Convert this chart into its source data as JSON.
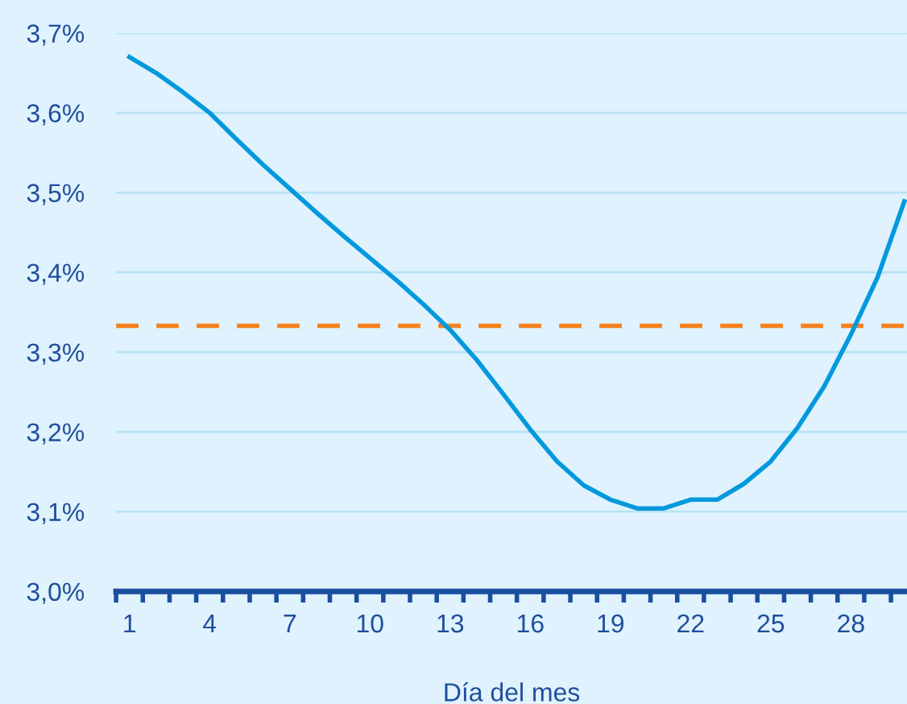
{
  "chart_data": {
    "type": "line",
    "xlabel": "Día del mes",
    "x": [
      1,
      2,
      3,
      4,
      5,
      6,
      7,
      8,
      9,
      10,
      11,
      12,
      13,
      14,
      15,
      16,
      17,
      18,
      19,
      20,
      21,
      22,
      23,
      24,
      25,
      26,
      27,
      28,
      29,
      30
    ],
    "series": [
      {
        "color": "#0099dd",
        "values": [
          3.67,
          3.65,
          3.626,
          3.6,
          3.567,
          3.535,
          3.505,
          3.475,
          3.446,
          3.418,
          3.39,
          3.36,
          3.328,
          3.29,
          3.247,
          3.203,
          3.163,
          3.133,
          3.115,
          3.104,
          3.104,
          3.115,
          3.115,
          3.135,
          3.163,
          3.205,
          3.257,
          3.322,
          3.394,
          3.489
        ]
      }
    ],
    "ref_lines": [
      {
        "axis": "y",
        "value": 3.333,
        "color": "#f5821f",
        "line_style": "dashed"
      }
    ],
    "xlim": [
      0.5,
      30.1
    ],
    "xticks": [
      1,
      4,
      7,
      10,
      13,
      16,
      19,
      22,
      25,
      28,
      {
        "value": 0.5,
        "label": null
      },
      {
        "value": 1.5,
        "label": null
      },
      {
        "value": 2.5,
        "label": null
      },
      {
        "value": 3.5,
        "label": null
      },
      {
        "value": 4.5,
        "label": null
      },
      {
        "value": 5.5,
        "label": null
      },
      {
        "value": 6.5,
        "label": null
      },
      {
        "value": 7.5,
        "label": null
      },
      {
        "value": 8.5,
        "label": null
      },
      {
        "value": 9.5,
        "label": null
      },
      {
        "value": 10.5,
        "label": null
      },
      {
        "value": 11.5,
        "label": null
      },
      {
        "value": 12.5,
        "label": null
      },
      {
        "value": 13.5,
        "label": null
      },
      {
        "value": 14.5,
        "label": null
      },
      {
        "value": 15.5,
        "label": null
      },
      {
        "value": 16.5,
        "label": null
      },
      {
        "value": 17.5,
        "label": null
      },
      {
        "value": 18.5,
        "label": null
      },
      {
        "value": 19.5,
        "label": null
      },
      {
        "value": 20.5,
        "label": null
      },
      {
        "value": 21.5,
        "label": null
      },
      {
        "value": 22.5,
        "label": null
      },
      {
        "value": 23.5,
        "label": null
      },
      {
        "value": 24.5,
        "label": null
      },
      {
        "value": 25.5,
        "label": null
      },
      {
        "value": 26.5,
        "label": null
      },
      {
        "value": 27.5,
        "label": null
      },
      {
        "value": 28.5,
        "label": null
      },
      {
        "value": 29.5,
        "label": null
      }
    ],
    "ylim": [
      3.0,
      3.7
    ],
    "yticks": [
      {
        "value": 3.0,
        "label": "3,0%"
      },
      {
        "value": 3.1,
        "label": "3,1%"
      },
      {
        "value": 3.2,
        "label": "3,2%"
      },
      {
        "value": 3.3,
        "label": "3,3%"
      },
      {
        "value": 3.4,
        "label": "3,4%"
      },
      {
        "value": 3.5,
        "label": "3,5%"
      },
      {
        "value": 3.6,
        "label": "3,6%"
      },
      {
        "value": 3.7,
        "label": "3,7%"
      }
    ],
    "grid": "y",
    "marker": "none",
    "line_style": "solid"
  }
}
